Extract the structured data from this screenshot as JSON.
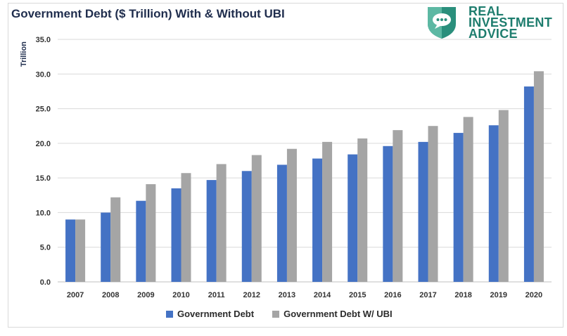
{
  "chart_data": {
    "type": "bar",
    "title": "Government Debt ($ Trillion) With & Without UBI",
    "ylabel": "Trillion",
    "xlabel": "",
    "ylim": [
      0,
      35
    ],
    "yticks": [
      "0.0",
      "5.0",
      "10.0",
      "15.0",
      "20.0",
      "25.0",
      "30.0",
      "35.0"
    ],
    "grid": true,
    "legend_position": "bottom",
    "categories": [
      "2007",
      "2008",
      "2009",
      "2010",
      "2011",
      "2012",
      "2013",
      "2014",
      "2015",
      "2016",
      "2017",
      "2018",
      "2019",
      "2020"
    ],
    "series": [
      {
        "name": "Government Debt",
        "color": "#4472c4",
        "values": [
          9.0,
          10.0,
          11.7,
          13.5,
          14.7,
          16.0,
          16.9,
          17.8,
          18.4,
          19.6,
          20.2,
          21.5,
          22.6,
          28.2
        ]
      },
      {
        "name": "Government Debt W/ UBI",
        "color": "#a5a5a5",
        "values": [
          9.0,
          12.2,
          14.1,
          15.7,
          17.0,
          18.3,
          19.2,
          20.2,
          20.7,
          21.9,
          22.5,
          23.8,
          24.8,
          30.4
        ]
      }
    ]
  },
  "branding": {
    "lines": [
      "REAL",
      "INVESTMENT",
      "ADVICE"
    ],
    "icon": "shield-speech-bubble-icon",
    "color": "#1e7d6e"
  }
}
